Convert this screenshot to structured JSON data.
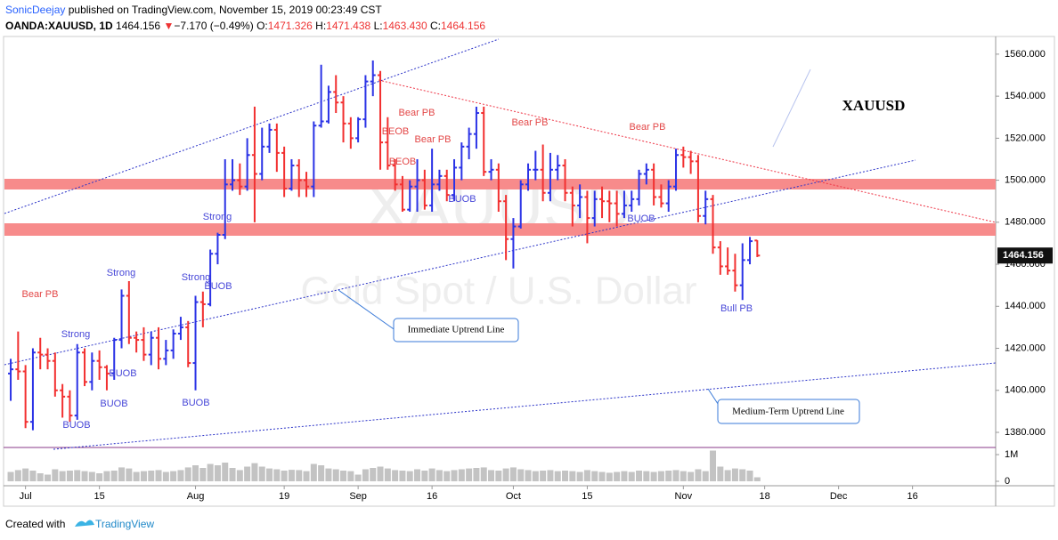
{
  "header": {
    "author": "SonicDeejay",
    "published": "published on TradingView.com, November 15, 2019 00:23:49 CST",
    "symbol": "OANDA:XAUUSD, 1D",
    "price": "1464.156",
    "arrow": "▼",
    "change": "−7.170 (−0.49%)",
    "o_label": "O:",
    "o": "1471.326",
    "h_label": "H:",
    "h": "1471.438",
    "l_label": "L:",
    "l": "1463.430",
    "c_label": "C:",
    "c": "1464.156"
  },
  "footer": {
    "created": "Created with",
    "brand": "TradingView"
  },
  "chart_data": {
    "type": "ohlc",
    "up_color": "#2b33e6",
    "down_color": "#f23030",
    "volume_color": "#c3c3c3",
    "xlim": [
      -1.45,
      133.25
    ],
    "xticks": [
      {
        "value": 2,
        "label": "Jul"
      },
      {
        "value": 12,
        "label": "15"
      },
      {
        "value": 25,
        "label": "Aug"
      },
      {
        "value": 37,
        "label": "19"
      },
      {
        "value": 47,
        "label": "Sep"
      },
      {
        "value": 57,
        "label": "16"
      },
      {
        "value": 68,
        "label": "Oct"
      },
      {
        "value": 78,
        "label": "15"
      },
      {
        "value": 91,
        "label": "Nov"
      },
      {
        "value": 102,
        "label": "18"
      },
      {
        "value": 112,
        "label": "Dec"
      },
      {
        "value": 122,
        "label": "16"
      }
    ],
    "ylim": [
      1372.8,
      1568
    ],
    "yticks": [
      {
        "value": 1380,
        "label": "1380.000"
      },
      {
        "value": 1400,
        "label": "1400.000"
      },
      {
        "value": 1420,
        "label": "1420.000"
      },
      {
        "value": 1440,
        "label": "1440.000"
      },
      {
        "value": 1460,
        "label": "1460.000"
      },
      {
        "value": 1480,
        "label": "1480.000"
      },
      {
        "value": 1500,
        "label": "1500.000"
      },
      {
        "value": 1520,
        "label": "1520.000"
      },
      {
        "value": 1540,
        "label": "1540.000"
      },
      {
        "value": 1560,
        "label": "1560.000"
      }
    ],
    "price_label": "1464.156",
    "volume_ylim": [
      -133000,
      1200000
    ],
    "volume_ticks": [
      {
        "value": 1000000,
        "label": "1M"
      },
      0
    ],
    "ohlc": [
      [
        1408,
        1415,
        1395,
        1410
      ],
      [
        1410,
        1428,
        1405,
        1409
      ],
      [
        1409,
        1412,
        1382,
        1385
      ],
      [
        1385,
        1420,
        1381,
        1418
      ],
      [
        1418,
        1425,
        1410,
        1417
      ],
      [
        1417,
        1420,
        1410,
        1414
      ],
      [
        1414,
        1418,
        1397,
        1400
      ],
      [
        1400,
        1403,
        1387,
        1397
      ],
      [
        1397,
        1400,
        1385,
        1388
      ],
      [
        1388,
        1422,
        1386,
        1418
      ],
      [
        1418,
        1420,
        1402,
        1404
      ],
      [
        1404,
        1418,
        1400,
        1414
      ],
      [
        1414,
        1419,
        1405,
        1411
      ],
      [
        1411,
        1412,
        1400,
        1408
      ],
      [
        1408,
        1425,
        1405,
        1424
      ],
      [
        1424,
        1448,
        1420,
        1445
      ],
      [
        1445,
        1452,
        1422,
        1425
      ],
      [
        1425,
        1428,
        1418,
        1424
      ],
      [
        1424,
        1430,
        1414,
        1417
      ],
      [
        1417,
        1428,
        1412,
        1425
      ],
      [
        1425,
        1430,
        1410,
        1415
      ],
      [
        1415,
        1424,
        1412,
        1419
      ],
      [
        1419,
        1429,
        1415,
        1427
      ],
      [
        1427,
        1435,
        1424,
        1430
      ],
      [
        1430,
        1433,
        1411,
        1413
      ],
      [
        1413,
        1445,
        1400,
        1442
      ],
      [
        1442,
        1447,
        1430,
        1441
      ],
      [
        1441,
        1467,
        1440,
        1465
      ],
      [
        1465,
        1475,
        1460,
        1474
      ],
      [
        1474,
        1510,
        1472,
        1498
      ],
      [
        1498,
        1510,
        1495,
        1500
      ],
      [
        1500,
        1508,
        1493,
        1497
      ],
      [
        1497,
        1520,
        1495,
        1512
      ],
      [
        1512,
        1535,
        1480,
        1503
      ],
      [
        1503,
        1525,
        1500,
        1516
      ],
      [
        1516,
        1527,
        1513,
        1524
      ],
      [
        1524,
        1527,
        1504,
        1513
      ],
      [
        1513,
        1516,
        1492,
        1496
      ],
      [
        1496,
        1510,
        1495,
        1507
      ],
      [
        1507,
        1510,
        1492,
        1500
      ],
      [
        1500,
        1504,
        1492,
        1497
      ],
      [
        1497,
        1528,
        1492,
        1526
      ],
      [
        1526,
        1555,
        1525,
        1528
      ],
      [
        1528,
        1545,
        1527,
        1542
      ],
      [
        1542,
        1550,
        1532,
        1537
      ],
      [
        1537,
        1540,
        1518,
        1527
      ],
      [
        1527,
        1530,
        1515,
        1520
      ],
      [
        1520,
        1530,
        1518,
        1529
      ],
      [
        1529,
        1550,
        1525,
        1547
      ],
      [
        1547,
        1557,
        1540,
        1550
      ],
      [
        1550,
        1552,
        1505,
        1518
      ],
      [
        1518,
        1530,
        1505,
        1507
      ],
      [
        1507,
        1510,
        1495,
        1498
      ],
      [
        1498,
        1502,
        1485,
        1486
      ],
      [
        1486,
        1500,
        1485,
        1497
      ],
      [
        1497,
        1510,
        1485,
        1500
      ],
      [
        1500,
        1505,
        1486,
        1488
      ],
      [
        1488,
        1515,
        1485,
        1498
      ],
      [
        1498,
        1505,
        1495,
        1502
      ],
      [
        1502,
        1505,
        1490,
        1493
      ],
      [
        1493,
        1510,
        1490,
        1506
      ],
      [
        1506,
        1518,
        1500,
        1516
      ],
      [
        1516,
        1525,
        1510,
        1522
      ],
      [
        1522,
        1535,
        1515,
        1532
      ],
      [
        1532,
        1535,
        1502,
        1504
      ],
      [
        1504,
        1510,
        1500,
        1505
      ],
      [
        1505,
        1508,
        1485,
        1490
      ],
      [
        1490,
        1493,
        1462,
        1472
      ],
      [
        1472,
        1482,
        1458,
        1478
      ],
      [
        1478,
        1500,
        1477,
        1498
      ],
      [
        1498,
        1508,
        1495,
        1505
      ],
      [
        1505,
        1514,
        1500,
        1505
      ],
      [
        1505,
        1517,
        1490,
        1494
      ],
      [
        1494,
        1513,
        1490,
        1505
      ],
      [
        1505,
        1512,
        1500,
        1507
      ],
      [
        1507,
        1510,
        1490,
        1494
      ],
      [
        1494,
        1497,
        1478,
        1488
      ],
      [
        1488,
        1498,
        1482,
        1492
      ],
      [
        1492,
        1495,
        1470,
        1482
      ],
      [
        1482,
        1495,
        1478,
        1491
      ],
      [
        1491,
        1497,
        1482,
        1490
      ],
      [
        1490,
        1495,
        1480,
        1489
      ],
      [
        1489,
        1495,
        1478,
        1484
      ],
      [
        1484,
        1495,
        1482,
        1488
      ],
      [
        1488,
        1495,
        1485,
        1491
      ],
      [
        1491,
        1505,
        1488,
        1503
      ],
      [
        1503,
        1508,
        1498,
        1505
      ],
      [
        1505,
        1508,
        1488,
        1492
      ],
      [
        1492,
        1498,
        1487,
        1489
      ],
      [
        1489,
        1500,
        1485,
        1497
      ],
      [
        1497,
        1515,
        1495,
        1512
      ],
      [
        1512,
        1516,
        1506,
        1511
      ],
      [
        1511,
        1514,
        1503,
        1509
      ],
      [
        1509,
        1512,
        1480,
        1483
      ],
      [
        1483,
        1495,
        1479,
        1491
      ],
      [
        1491,
        1493,
        1465,
        1468
      ],
      [
        1468,
        1471,
        1455,
        1459
      ],
      [
        1459,
        1468,
        1455,
        1457
      ],
      [
        1457,
        1465,
        1447,
        1450
      ],
      [
        1450,
        1470,
        1443,
        1462
      ],
      [
        1462,
        1473,
        1460,
        1471
      ],
      [
        1471.326,
        1471.438,
        1463.43,
        1464.156
      ]
    ],
    "volume": [
      350000,
      420000,
      480000,
      400000,
      300000,
      250000,
      450000,
      380000,
      400000,
      420000,
      380000,
      350000,
      300000,
      380000,
      400000,
      520000,
      480000,
      350000,
      380000,
      400000,
      420000,
      350000,
      380000,
      420000,
      520000,
      600000,
      500000,
      650000,
      600000,
      700000,
      500000,
      420000,
      550000,
      680000,
      550000,
      480000,
      450000,
      400000,
      430000,
      420000,
      380000,
      650000,
      600000,
      480000,
      450000,
      400000,
      380000,
      250000,
      450000,
      500000,
      550000,
      480000,
      420000,
      400000,
      380000,
      450000,
      400000,
      480000,
      420000,
      380000,
      420000,
      450000,
      480000,
      500000,
      520000,
      420000,
      400000,
      480000,
      520000,
      450000,
      420000,
      380000,
      400000,
      420000,
      380000,
      400000,
      380000,
      350000,
      420000,
      380000,
      350000,
      320000,
      350000,
      380000,
      350000,
      400000,
      380000,
      350000,
      380000,
      400000,
      420000,
      380000,
      350000,
      450000,
      380000,
      1150000,
      550000,
      420000,
      480000,
      450000,
      400000,
      150000
    ],
    "annotations": [
      "Bear PB",
      "Strong",
      "Strong",
      "Strong",
      "BUOB",
      "Strong",
      "BUOB",
      "BUOB",
      "BUOB",
      "BUOB",
      "Bear PB",
      "BEOB",
      "Bear PB",
      "BEOB",
      "BUOB",
      "Bear PB",
      "BUOB",
      "Bear PB",
      "Bull PB"
    ],
    "label": "XAUUSD",
    "watermark": [
      "XAUUSD",
      "Gold Spot / U.S. Dollar"
    ],
    "callouts": [
      "Immediate Uptrend Line",
      "Medium-Term Uptrend Line"
    ]
  }
}
